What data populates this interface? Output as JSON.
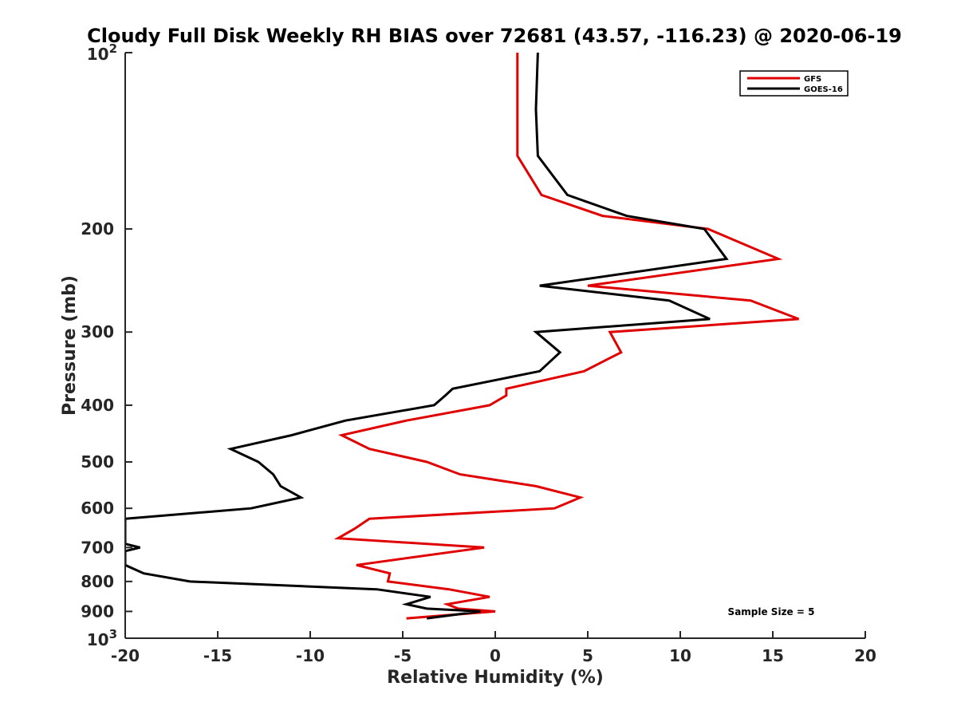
{
  "chart_data": {
    "type": "line",
    "title": "Cloudy Full Disk Weekly RH BIAS over 72681 (43.57, -116.23) @ 2020-06-19",
    "xlabel": "Relative Humidity (%)",
    "ylabel": "Pressure (mb)",
    "xlim": [
      -20,
      20
    ],
    "ylim": [
      100,
      1000
    ],
    "y_scale": "log",
    "y_reversed": true,
    "x_ticks": [
      "-20",
      "-15",
      "-10",
      "-5",
      "0",
      "5",
      "10",
      "15",
      "20"
    ],
    "y_ticks": [
      {
        "value": 100,
        "base": "10",
        "exp": "2"
      },
      {
        "value": 200,
        "label": "200"
      },
      {
        "value": 300,
        "label": "300"
      },
      {
        "value": 400,
        "label": "400"
      },
      {
        "value": 500,
        "label": "500"
      },
      {
        "value": 600,
        "label": "600"
      },
      {
        "value": 700,
        "label": "700"
      },
      {
        "value": 800,
        "label": "800"
      },
      {
        "value": 900,
        "label": "900"
      },
      {
        "value": 1000,
        "base": "10",
        "exp": "3"
      }
    ],
    "legend_position": "top-right",
    "annotation": "Sample Size = 5",
    "series": [
      {
        "name": "GFS",
        "color": "#e00000",
        "points": [
          [
            1.2,
            100
          ],
          [
            1.2,
            150
          ],
          [
            2.5,
            175
          ],
          [
            5.8,
            190
          ],
          [
            11.5,
            200
          ],
          [
            15.3,
            225
          ],
          [
            5.0,
            250
          ],
          [
            13.8,
            265
          ],
          [
            16.4,
            285
          ],
          [
            6.2,
            300
          ],
          [
            6.8,
            325
          ],
          [
            4.8,
            350
          ],
          [
            0.6,
            375
          ],
          [
            0.6,
            385
          ],
          [
            -0.3,
            400
          ],
          [
            -4.8,
            425
          ],
          [
            -8.3,
            450
          ],
          [
            -6.8,
            475
          ],
          [
            -3.7,
            500
          ],
          [
            -1.9,
            525
          ],
          [
            2.2,
            550
          ],
          [
            4.6,
            575
          ],
          [
            3.2,
            600
          ],
          [
            -6.8,
            625
          ],
          [
            -7.6,
            650
          ],
          [
            -8.5,
            675
          ],
          [
            -0.6,
            700
          ],
          [
            -7.5,
            750
          ],
          [
            -5.7,
            775
          ],
          [
            -5.8,
            800
          ],
          [
            -2.5,
            825
          ],
          [
            -0.3,
            850
          ],
          [
            -2.6,
            875
          ],
          [
            -2.0,
            890
          ],
          [
            0.0,
            900
          ],
          [
            -4.8,
            925
          ]
        ]
      },
      {
        "name": "GOES-16",
        "color": "#000000",
        "points": [
          [
            2.3,
            100
          ],
          [
            2.2,
            125
          ],
          [
            2.3,
            150
          ],
          [
            3.9,
            175
          ],
          [
            7.1,
            190
          ],
          [
            11.3,
            200
          ],
          [
            12.5,
            225
          ],
          [
            2.4,
            250
          ],
          [
            9.4,
            265
          ],
          [
            11.6,
            285
          ],
          [
            2.2,
            300
          ],
          [
            3.5,
            325
          ],
          [
            2.4,
            350
          ],
          [
            -2.3,
            375
          ],
          [
            -2.7,
            385
          ],
          [
            -3.3,
            400
          ],
          [
            -8.1,
            425
          ],
          [
            -11.0,
            450
          ],
          [
            -14.3,
            475
          ],
          [
            -12.8,
            500
          ],
          [
            -12.0,
            525
          ],
          [
            -11.6,
            550
          ],
          [
            -10.5,
            575
          ],
          [
            -13.2,
            600
          ],
          [
            -20.0,
            625
          ],
          [
            -20.0,
            690
          ],
          [
            -19.2,
            700
          ],
          [
            -20.0,
            710
          ],
          [
            -20.0,
            750
          ],
          [
            -19.0,
            775
          ],
          [
            -16.5,
            800
          ],
          [
            -6.4,
            825
          ],
          [
            -3.5,
            850
          ],
          [
            -4.8,
            875
          ],
          [
            -3.7,
            890
          ],
          [
            -0.8,
            900
          ],
          [
            -3.7,
            925
          ]
        ]
      }
    ]
  }
}
